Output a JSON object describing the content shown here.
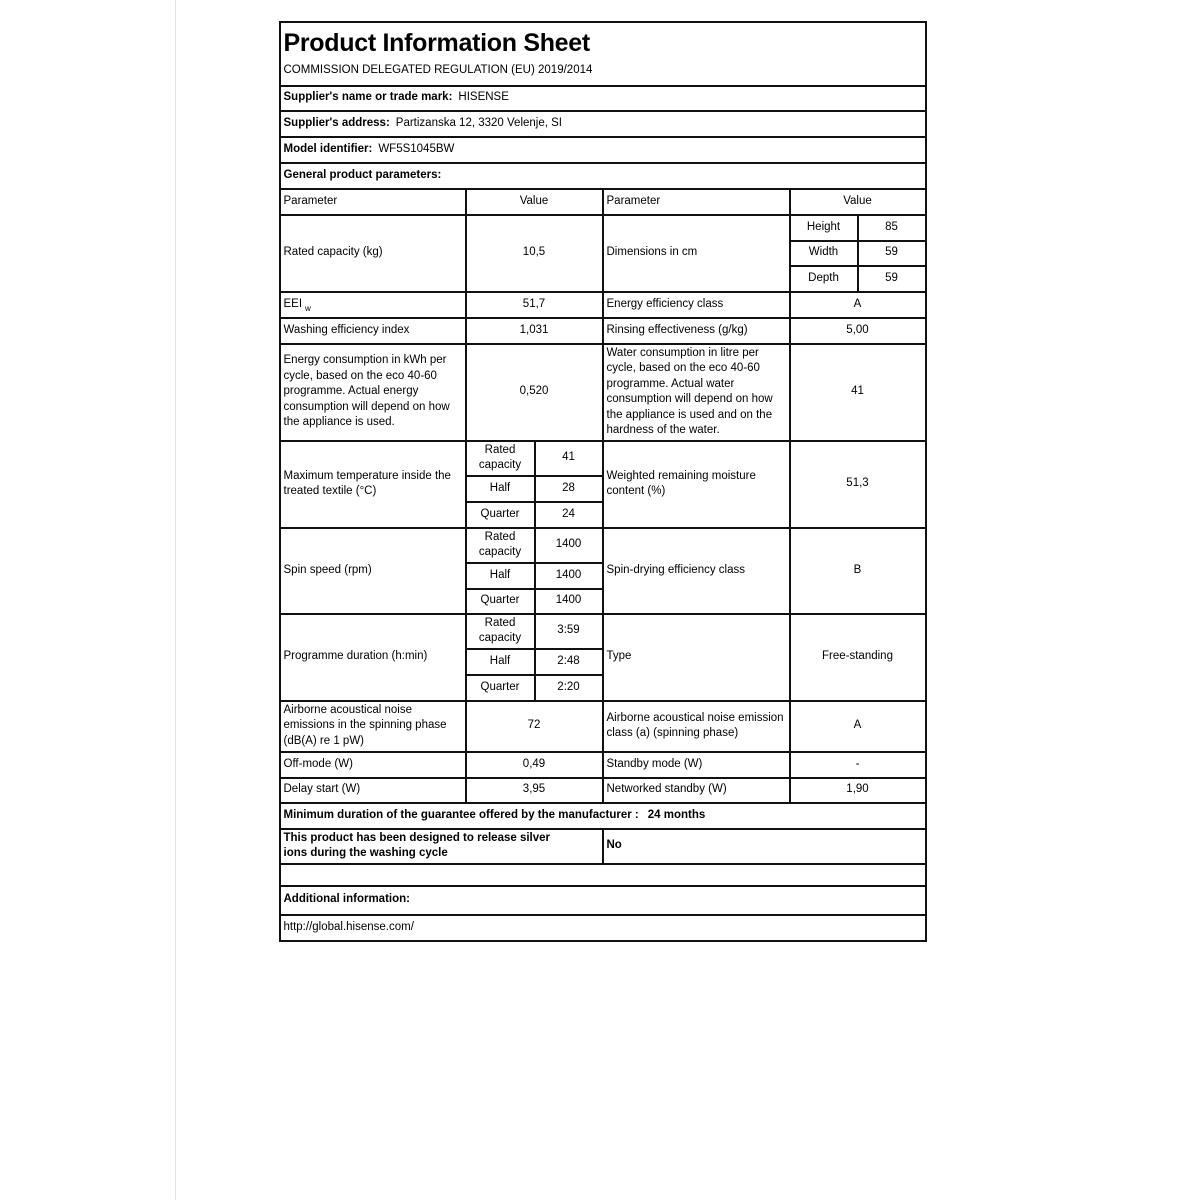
{
  "header": {
    "title": "Product Information Sheet",
    "regulation": "COMMISSION DELEGATED REGULATION (EU) 2019/2014"
  },
  "supplier": {
    "name_label": "Supplier's name or trade mark:",
    "name_value": "HISENSE",
    "address_label": "Supplier's address:",
    "address_value": "Partizanska 12, 3320 Velenje, SI",
    "model_label": "Model identifier:",
    "model_value": "WF5S1045BW"
  },
  "general_heading": "General product parameters:",
  "table": {
    "col_parameter": "Parameter",
    "col_value": "Value",
    "rated_capacity": {
      "label": "Rated capacity (kg)",
      "value": "10,5"
    },
    "dimensions": {
      "label": "Dimensions in cm",
      "items": [
        {
          "name": "Height",
          "value": "85"
        },
        {
          "name": "Width",
          "value": "59"
        },
        {
          "name": "Depth",
          "value": "59"
        }
      ]
    },
    "eei": {
      "label": "EEI",
      "subscript": "w",
      "value": "51,7"
    },
    "energy_class": {
      "label": "Energy efficiency class",
      "value": "A"
    },
    "washing_index": {
      "label": "Washing efficiency index",
      "value": "1,031"
    },
    "rinsing": {
      "label": "Rinsing effectiveness (g/kg)",
      "value": "5,00"
    },
    "energy_consumption": {
      "label": "Energy consumption in kWh per cycle, based on the eco 40-60 programme. Actual energy consumption will depend on how the appliance is used.",
      "value": "0,520"
    },
    "water_consumption": {
      "label": "Water consumption in litre per cycle, based on the eco 40-60 programme. Actual water consumption will depend on how the appliance is used and on the hardness of the water.",
      "value": "41"
    },
    "load_labels": {
      "rated": "Rated capacity",
      "half": "Half",
      "quarter": "Quarter"
    },
    "max_temperature": {
      "label": "Maximum temperature inside the treated textile (°C)",
      "rated": "41",
      "half": "28",
      "quarter": "24"
    },
    "moisture": {
      "label": "Weighted remaining moisture content (%)",
      "value": "51,3"
    },
    "spin_speed": {
      "label": "Spin speed (rpm)",
      "rated": "1400",
      "half": "1400",
      "quarter": "1400"
    },
    "spin_class": {
      "label": "Spin-drying efficiency class",
      "value": "B"
    },
    "duration": {
      "label": "Programme duration (h:min)",
      "rated": "3:59",
      "half": "2:48",
      "quarter": "2:20"
    },
    "type": {
      "label": "Type",
      "value": "Free-standing"
    },
    "noise": {
      "label": "Airborne acoustical noise emissions in the spinning phase (dB(A) re 1 pW)",
      "value": "72"
    },
    "noise_class": {
      "label": "Airborne acoustical noise emission class (a) (spinning phase)",
      "value": "A"
    },
    "off_mode": {
      "label": "Off-mode (W)",
      "value": "0,49"
    },
    "standby": {
      "label": "Standby mode (W)",
      "value": "-"
    },
    "delay_start": {
      "label": "Delay start (W)",
      "value": "3,95"
    },
    "networked_standby": {
      "label": "Networked standby (W)",
      "value": "1,90"
    }
  },
  "guarantee": {
    "label": "Minimum duration of the guarantee offered by the manufacturer :",
    "value": "24 months"
  },
  "silver_ions": {
    "label": "This product has been designed to release silver ions during the washing cycle",
    "value": "No"
  },
  "additional": {
    "label": "Additional information:",
    "url": "http://global.hisense.com/"
  }
}
